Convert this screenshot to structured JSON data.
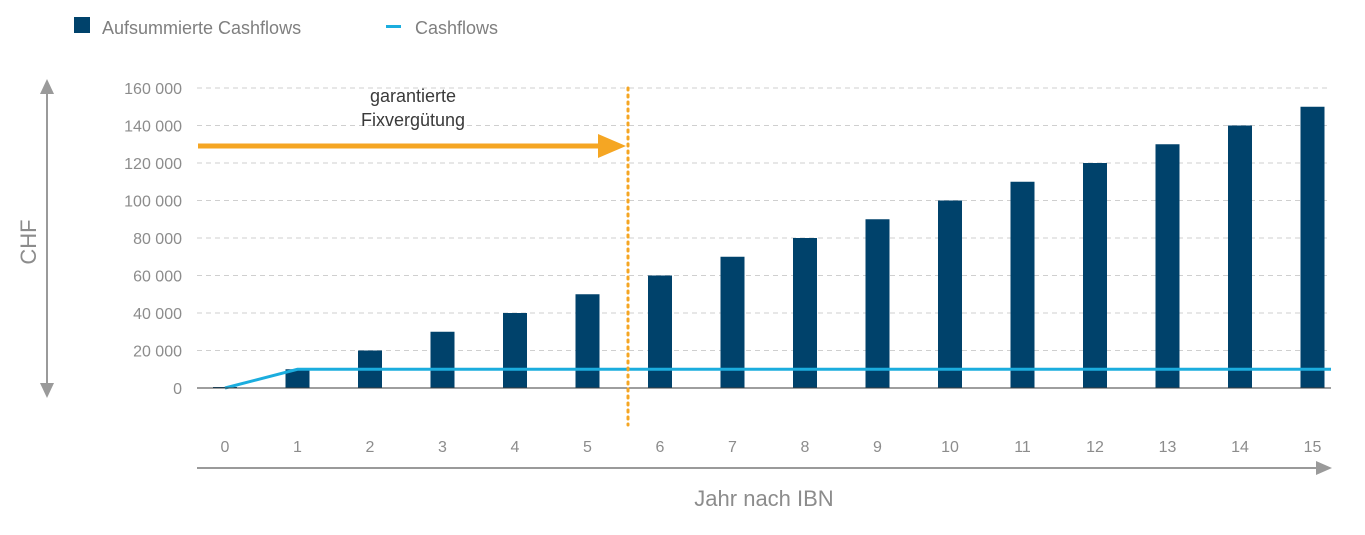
{
  "chart_data": {
    "type": "bar",
    "categories": [
      "0",
      "1",
      "2",
      "3",
      "4",
      "5",
      "6",
      "7",
      "8",
      "9",
      "10",
      "11",
      "12",
      "13",
      "14",
      "15"
    ],
    "series": [
      {
        "name": "Aufsummierte Cashflows",
        "kind": "bar",
        "color": "#00426b",
        "values": [
          0,
          10000,
          20000,
          30000,
          40000,
          50000,
          60000,
          70000,
          80000,
          90000,
          100000,
          110000,
          120000,
          130000,
          140000,
          150000
        ]
      },
      {
        "name": "Cashflows",
        "kind": "line",
        "color": "#1badde",
        "values": [
          0,
          10000,
          10000,
          10000,
          10000,
          10000,
          10000,
          10000,
          10000,
          10000,
          10000,
          10000,
          10000,
          10000,
          10000,
          10000
        ]
      }
    ],
    "xlabel": "Jahr nach IBN",
    "ylabel": "CHF",
    "ylim": [
      0,
      160000
    ],
    "yticks": [
      0,
      20000,
      40000,
      60000,
      80000,
      100000,
      120000,
      140000,
      160000
    ],
    "ytick_labels": [
      "0",
      "20 000",
      "40 000",
      "60 000",
      "80 000",
      "100 000",
      "120 000",
      "140 000",
      "160 000"
    ],
    "grid": true,
    "legend_position": "top-left",
    "annotation": {
      "lines": [
        "garantierte",
        "Fixvergütung"
      ],
      "arrow_color": "#f5a623",
      "divider_after_category": "5"
    }
  }
}
